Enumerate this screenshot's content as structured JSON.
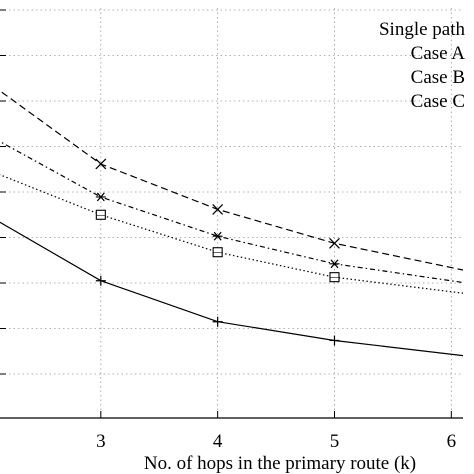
{
  "chart_data": {
    "type": "line",
    "title": "",
    "xlabel": "No. of hops in the primary route (k)",
    "ylabel": "",
    "x_ticks": [
      3,
      4,
      5,
      6
    ],
    "xlim": [
      2,
      6.1
    ],
    "ylim": [
      0,
      46
    ],
    "grid": true,
    "legend_position": "top-right",
    "series": [
      {
        "name": "Single path",
        "line": "solid",
        "marker": "plus",
        "color": "#000000",
        "x": [
          2,
          3,
          4,
          5,
          6.1
        ],
        "y": [
          23,
          15.4,
          10.8,
          8.7,
          7.0
        ]
      },
      {
        "name": "Case A",
        "line": "dashed",
        "marker": "x",
        "color": "#000000",
        "x": [
          2,
          3,
          4,
          5,
          6.1
        ],
        "y": [
          38,
          28.5,
          23.4,
          19.6,
          16.6
        ]
      },
      {
        "name": "Case B",
        "line": "dashdot",
        "marker": "asterisk",
        "color": "#000000",
        "x": [
          2,
          3,
          4,
          5,
          6.1
        ],
        "y": [
          32,
          24.8,
          20.4,
          17.3,
          15.2
        ]
      },
      {
        "name": "Case C",
        "line": "dotted",
        "marker": "square",
        "color": "#000000",
        "x": [
          2,
          3,
          4,
          5,
          6.1
        ],
        "y": [
          28,
          22.8,
          18.6,
          15.8,
          14.0
        ]
      }
    ]
  }
}
